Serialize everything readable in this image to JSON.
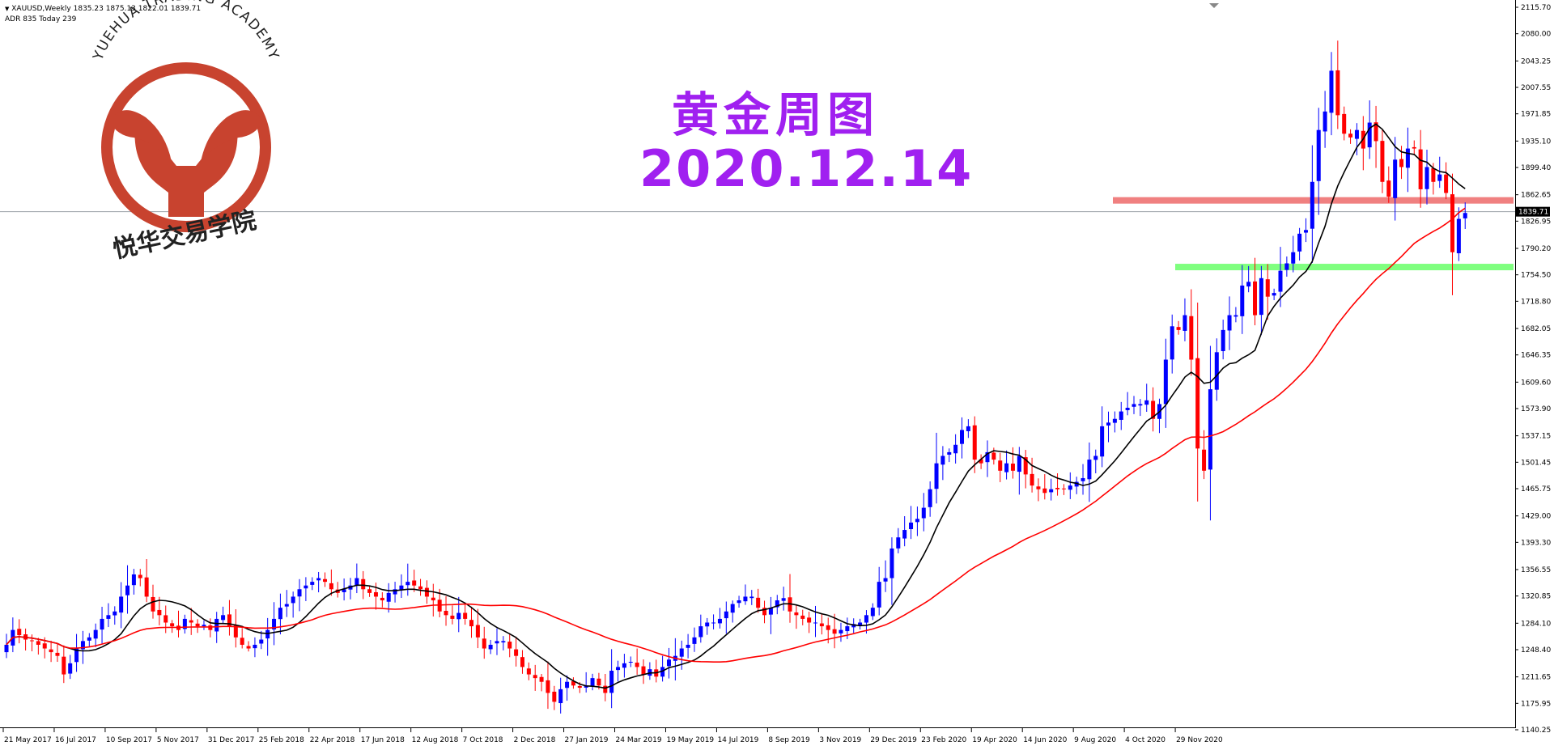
{
  "header": {
    "symbol_line": "XAUUSD,Weekly  1835.23 1875.13 1822.01 1839.71",
    "adr_line": "ADR 835  Today 239"
  },
  "logo": {
    "arc_text": "YUEHUA TRADING ACADEMY",
    "cn_text": "悦华交易学院",
    "color": "#c8432f"
  },
  "overlay": {
    "title_cn": "黄金周图",
    "date": "2020.12.14",
    "color": "#a020f0"
  },
  "chart_data": {
    "type": "candlestick",
    "symbol": "XAUUSD",
    "timeframe": "Weekly",
    "last_price": "1839.71",
    "ylim": [
      1140.25,
      2115.7
    ],
    "y_ticks": [
      "2115.70",
      "2080.00",
      "2043.25",
      "2007.55",
      "1971.85",
      "1935.10",
      "1899.40",
      "1862.65",
      "1826.95",
      "1790.20",
      "1754.50",
      "1718.80",
      "1682.05",
      "1646.35",
      "1609.60",
      "1573.90",
      "1537.15",
      "1501.45",
      "1465.75",
      "1429.00",
      "1393.30",
      "1356.55",
      "1320.85",
      "1284.10",
      "1248.40",
      "1211.65",
      "1175.95",
      "1140.25"
    ],
    "x_ticks": [
      "21 May 2017",
      "16 Jul 2017",
      "10 Sep 2017",
      "5 Nov 2017",
      "31 Dec 2017",
      "25 Feb 2018",
      "22 Apr 2018",
      "17 Jun 2018",
      "12 Aug 2018",
      "7 Oct 2018",
      "2 Dec 2018",
      "27 Jan 2019",
      "24 Mar 2019",
      "19 May 2019",
      "14 Jul 2019",
      "8 Sep 2019",
      "3 Nov 2019",
      "29 Dec 2019",
      "23 Feb 2020",
      "19 Apr 2020",
      "14 Jun 2020",
      "9 Aug 2020",
      "4 Oct 2020",
      "29 Nov 2020"
    ],
    "closes": [
      1255,
      1275,
      1268,
      1262,
      1260,
      1255,
      1250,
      1245,
      1240,
      1215,
      1230,
      1250,
      1260,
      1265,
      1275,
      1290,
      1295,
      1300,
      1320,
      1335,
      1350,
      1345,
      1320,
      1300,
      1295,
      1285,
      1280,
      1275,
      1290,
      1285,
      1280,
      1282,
      1275,
      1290,
      1295,
      1280,
      1265,
      1255,
      1250,
      1255,
      1262,
      1275,
      1290,
      1305,
      1310,
      1320,
      1330,
      1335,
      1340,
      1345,
      1340,
      1330,
      1325,
      1330,
      1335,
      1345,
      1330,
      1325,
      1320,
      1315,
      1325,
      1330,
      1335,
      1340,
      1335,
      1330,
      1320,
      1315,
      1300,
      1295,
      1290,
      1298,
      1290,
      1280,
      1265,
      1250,
      1255,
      1260,
      1260,
      1250,
      1240,
      1225,
      1215,
      1210,
      1205,
      1190,
      1178,
      1195,
      1205,
      1200,
      1197,
      1200,
      1210,
      1200,
      1190,
      1220,
      1225,
      1230,
      1232,
      1225,
      1215,
      1222,
      1212,
      1225,
      1235,
      1240,
      1250,
      1255,
      1265,
      1280,
      1285,
      1285,
      1290,
      1300,
      1310,
      1315,
      1320,
      1320,
      1305,
      1295,
      1305,
      1315,
      1318,
      1300,
      1295,
      1290,
      1285,
      1285,
      1280,
      1275,
      1270,
      1275,
      1280,
      1283,
      1285,
      1295,
      1305,
      1340,
      1345,
      1385,
      1400,
      1410,
      1420,
      1425,
      1440,
      1465,
      1500,
      1510,
      1515,
      1525,
      1545,
      1550,
      1505,
      1500,
      1515,
      1505,
      1490,
      1500,
      1490,
      1510,
      1485,
      1470,
      1465,
      1460,
      1465,
      1465,
      1465,
      1470,
      1475,
      1480,
      1505,
      1510,
      1550,
      1555,
      1560,
      1570,
      1575,
      1580,
      1580,
      1585,
      1560,
      1580,
      1640,
      1685,
      1680,
      1700,
      1640,
      1520,
      1490,
      1600,
      1650,
      1680,
      1700,
      1700,
      1740,
      1745,
      1700,
      1750,
      1725,
      1730,
      1760,
      1770,
      1785,
      1810,
      1815,
      1880,
      1950,
      1975,
      2030,
      1970,
      1945,
      1940,
      1950,
      1925,
      1960,
      1935,
      1880,
      1860,
      1910,
      1900,
      1925,
      1925,
      1870,
      1900,
      1880,
      1890,
      1865,
      1785,
      1830,
      1838
    ],
    "x_range_weeks": [
      "2017-05-21",
      "2020-12-13"
    ],
    "series": [
      {
        "name": "",
        "color": "#000000"
      },
      {
        "name": "",
        "color": "#ff0000"
      }
    ],
    "horizontal_zones": [
      {
        "price": 1855,
        "color": "#f08080"
      },
      {
        "price": 1765,
        "color": "#7fff7f"
      }
    ]
  }
}
